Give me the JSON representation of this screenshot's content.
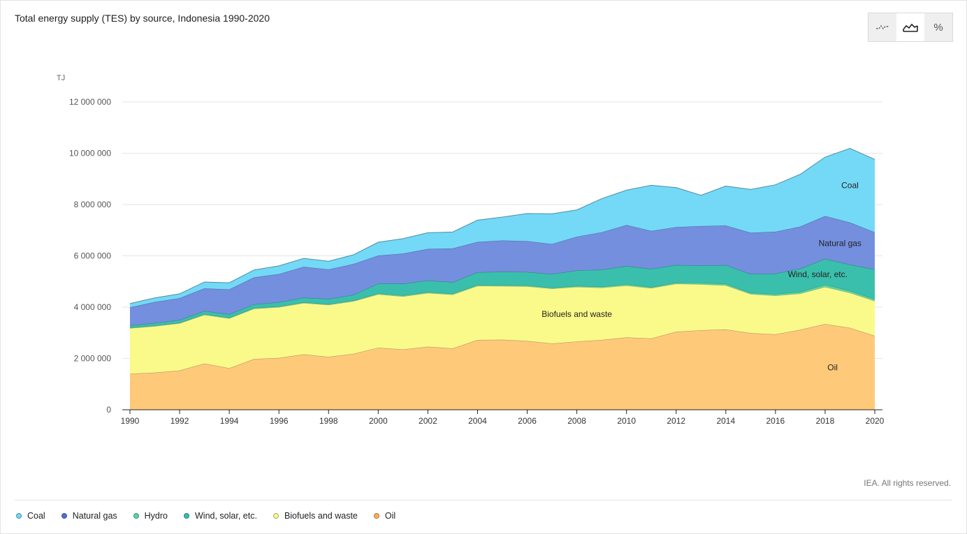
{
  "header": {
    "title": "Total energy supply (TES) by source, Indonesia 1990-2020"
  },
  "toolbar": {
    "buttons": [
      {
        "name": "line-view-button",
        "icon": "line-chart-icon",
        "active": false
      },
      {
        "name": "area-view-button",
        "icon": "area-chart-icon",
        "active": true
      },
      {
        "name": "percent-view-button",
        "icon": "percent-icon",
        "label": "%",
        "active": false
      }
    ]
  },
  "footer": {
    "copyright": "IEA. All rights reserved."
  },
  "chart_data": {
    "type": "area",
    "stacked": true,
    "title": "Total energy supply (TES) by source, Indonesia 1990-2020",
    "ylabel": "TJ",
    "ylim": [
      0,
      12000000
    ],
    "yticks": [
      0,
      2000000,
      4000000,
      6000000,
      8000000,
      10000000,
      12000000
    ],
    "ytick_labels": [
      "0",
      "2 000 000",
      "4 000 000",
      "6 000 000",
      "8 000 000",
      "10 000 000",
      "12 000 000"
    ],
    "xlim": [
      1990,
      2020
    ],
    "xticks": [
      1990,
      1992,
      1994,
      1996,
      1998,
      2000,
      2002,
      2004,
      2006,
      2008,
      2010,
      2012,
      2014,
      2016,
      2018,
      2020
    ],
    "grid": true,
    "legend_position": "bottom-left",
    "x": [
      1990,
      1991,
      1992,
      1993,
      1994,
      1995,
      1996,
      1997,
      1998,
      1999,
      2000,
      2001,
      2002,
      2003,
      2004,
      2005,
      2006,
      2007,
      2008,
      2009,
      2010,
      2011,
      2012,
      2013,
      2014,
      2015,
      2016,
      2017,
      2018,
      2019,
      2020
    ],
    "series": [
      {
        "name": "Oil",
        "color": "#ffc97a",
        "stroke": "#a88860",
        "inline_label": "Oil",
        "values": [
          1400000,
          1450000,
          1530000,
          1800000,
          1620000,
          1980000,
          2020000,
          2160000,
          2060000,
          2180000,
          2420000,
          2350000,
          2460000,
          2390000,
          2720000,
          2730000,
          2680000,
          2580000,
          2660000,
          2720000,
          2820000,
          2780000,
          3040000,
          3100000,
          3130000,
          2990000,
          2940000,
          3120000,
          3340000,
          3190000,
          2880000
        ]
      },
      {
        "name": "Biofuels and waste",
        "color": "#fafa8a",
        "stroke": "#a8a870",
        "inline_label": "Biofuels and waste",
        "values": [
          1780000,
          1810000,
          1840000,
          1900000,
          1940000,
          1960000,
          1980000,
          2000000,
          2030000,
          2050000,
          2080000,
          2070000,
          2090000,
          2100000,
          2110000,
          2090000,
          2130000,
          2140000,
          2130000,
          2040000,
          2020000,
          1960000,
          1870000,
          1790000,
          1720000,
          1520000,
          1510000,
          1410000,
          1450000,
          1370000,
          1360000
        ]
      },
      {
        "name": "Hydro",
        "color": "#5cd6a0",
        "stroke": "#3e8f73",
        "values": [
          20000,
          20000,
          20000,
          30000,
          30000,
          30000,
          30000,
          30000,
          30000,
          30000,
          40000,
          40000,
          40000,
          40000,
          40000,
          40000,
          40000,
          40000,
          40000,
          40000,
          60000,
          40000,
          50000,
          60000,
          60000,
          50000,
          60000,
          70000,
          90000,
          80000,
          80000
        ]
      },
      {
        "name": "Wind, solar, etc.",
        "color": "#3bbfad",
        "stroke": "#2b7f78",
        "inline_label": "Wind, solar, etc.",
        "values": [
          90000,
          100000,
          110000,
          120000,
          130000,
          140000,
          160000,
          180000,
          200000,
          220000,
          380000,
          450000,
          450000,
          440000,
          490000,
          520000,
          520000,
          530000,
          600000,
          660000,
          700000,
          710000,
          680000,
          670000,
          730000,
          730000,
          800000,
          900000,
          1000000,
          1020000,
          1150000
        ]
      },
      {
        "name": "Natural gas",
        "color": "#748fde",
        "stroke": "#4e619e",
        "inline_label": "Natural gas",
        "values": [
          700000,
          820000,
          850000,
          880000,
          970000,
          1050000,
          1100000,
          1200000,
          1150000,
          1200000,
          1090000,
          1180000,
          1230000,
          1320000,
          1180000,
          1220000,
          1200000,
          1170000,
          1320000,
          1460000,
          1600000,
          1480000,
          1480000,
          1540000,
          1540000,
          1610000,
          1630000,
          1640000,
          1670000,
          1640000,
          1450000
        ]
      },
      {
        "name": "Coal",
        "color": "#73d9f7",
        "stroke": "#4b8fa6",
        "inline_label": "Coal",
        "values": [
          150000,
          160000,
          170000,
          250000,
          260000,
          290000,
          320000,
          330000,
          320000,
          360000,
          520000,
          580000,
          630000,
          640000,
          850000,
          910000,
          1080000,
          1180000,
          1040000,
          1310000,
          1360000,
          1780000,
          1540000,
          1200000,
          1540000,
          1690000,
          1830000,
          2040000,
          2300000,
          2890000,
          2840000
        ]
      }
    ]
  },
  "legend": {
    "items": [
      {
        "label": "Coal",
        "color": "#73d9f7",
        "border": "#4b8fa6"
      },
      {
        "label": "Natural gas",
        "color": "#4e6ed0",
        "border": "#3a55a8"
      },
      {
        "label": "Hydro",
        "color": "#5cd6a0",
        "border": "#3e8f73"
      },
      {
        "label": "Wind, solar, etc.",
        "color": "#3bbfad",
        "border": "#2b7f78"
      },
      {
        "label": "Biofuels and waste",
        "color": "#fafa8a",
        "border": "#a8a870"
      },
      {
        "label": "Oil",
        "color": "#f5b060",
        "border": "#b07a3a"
      }
    ]
  }
}
